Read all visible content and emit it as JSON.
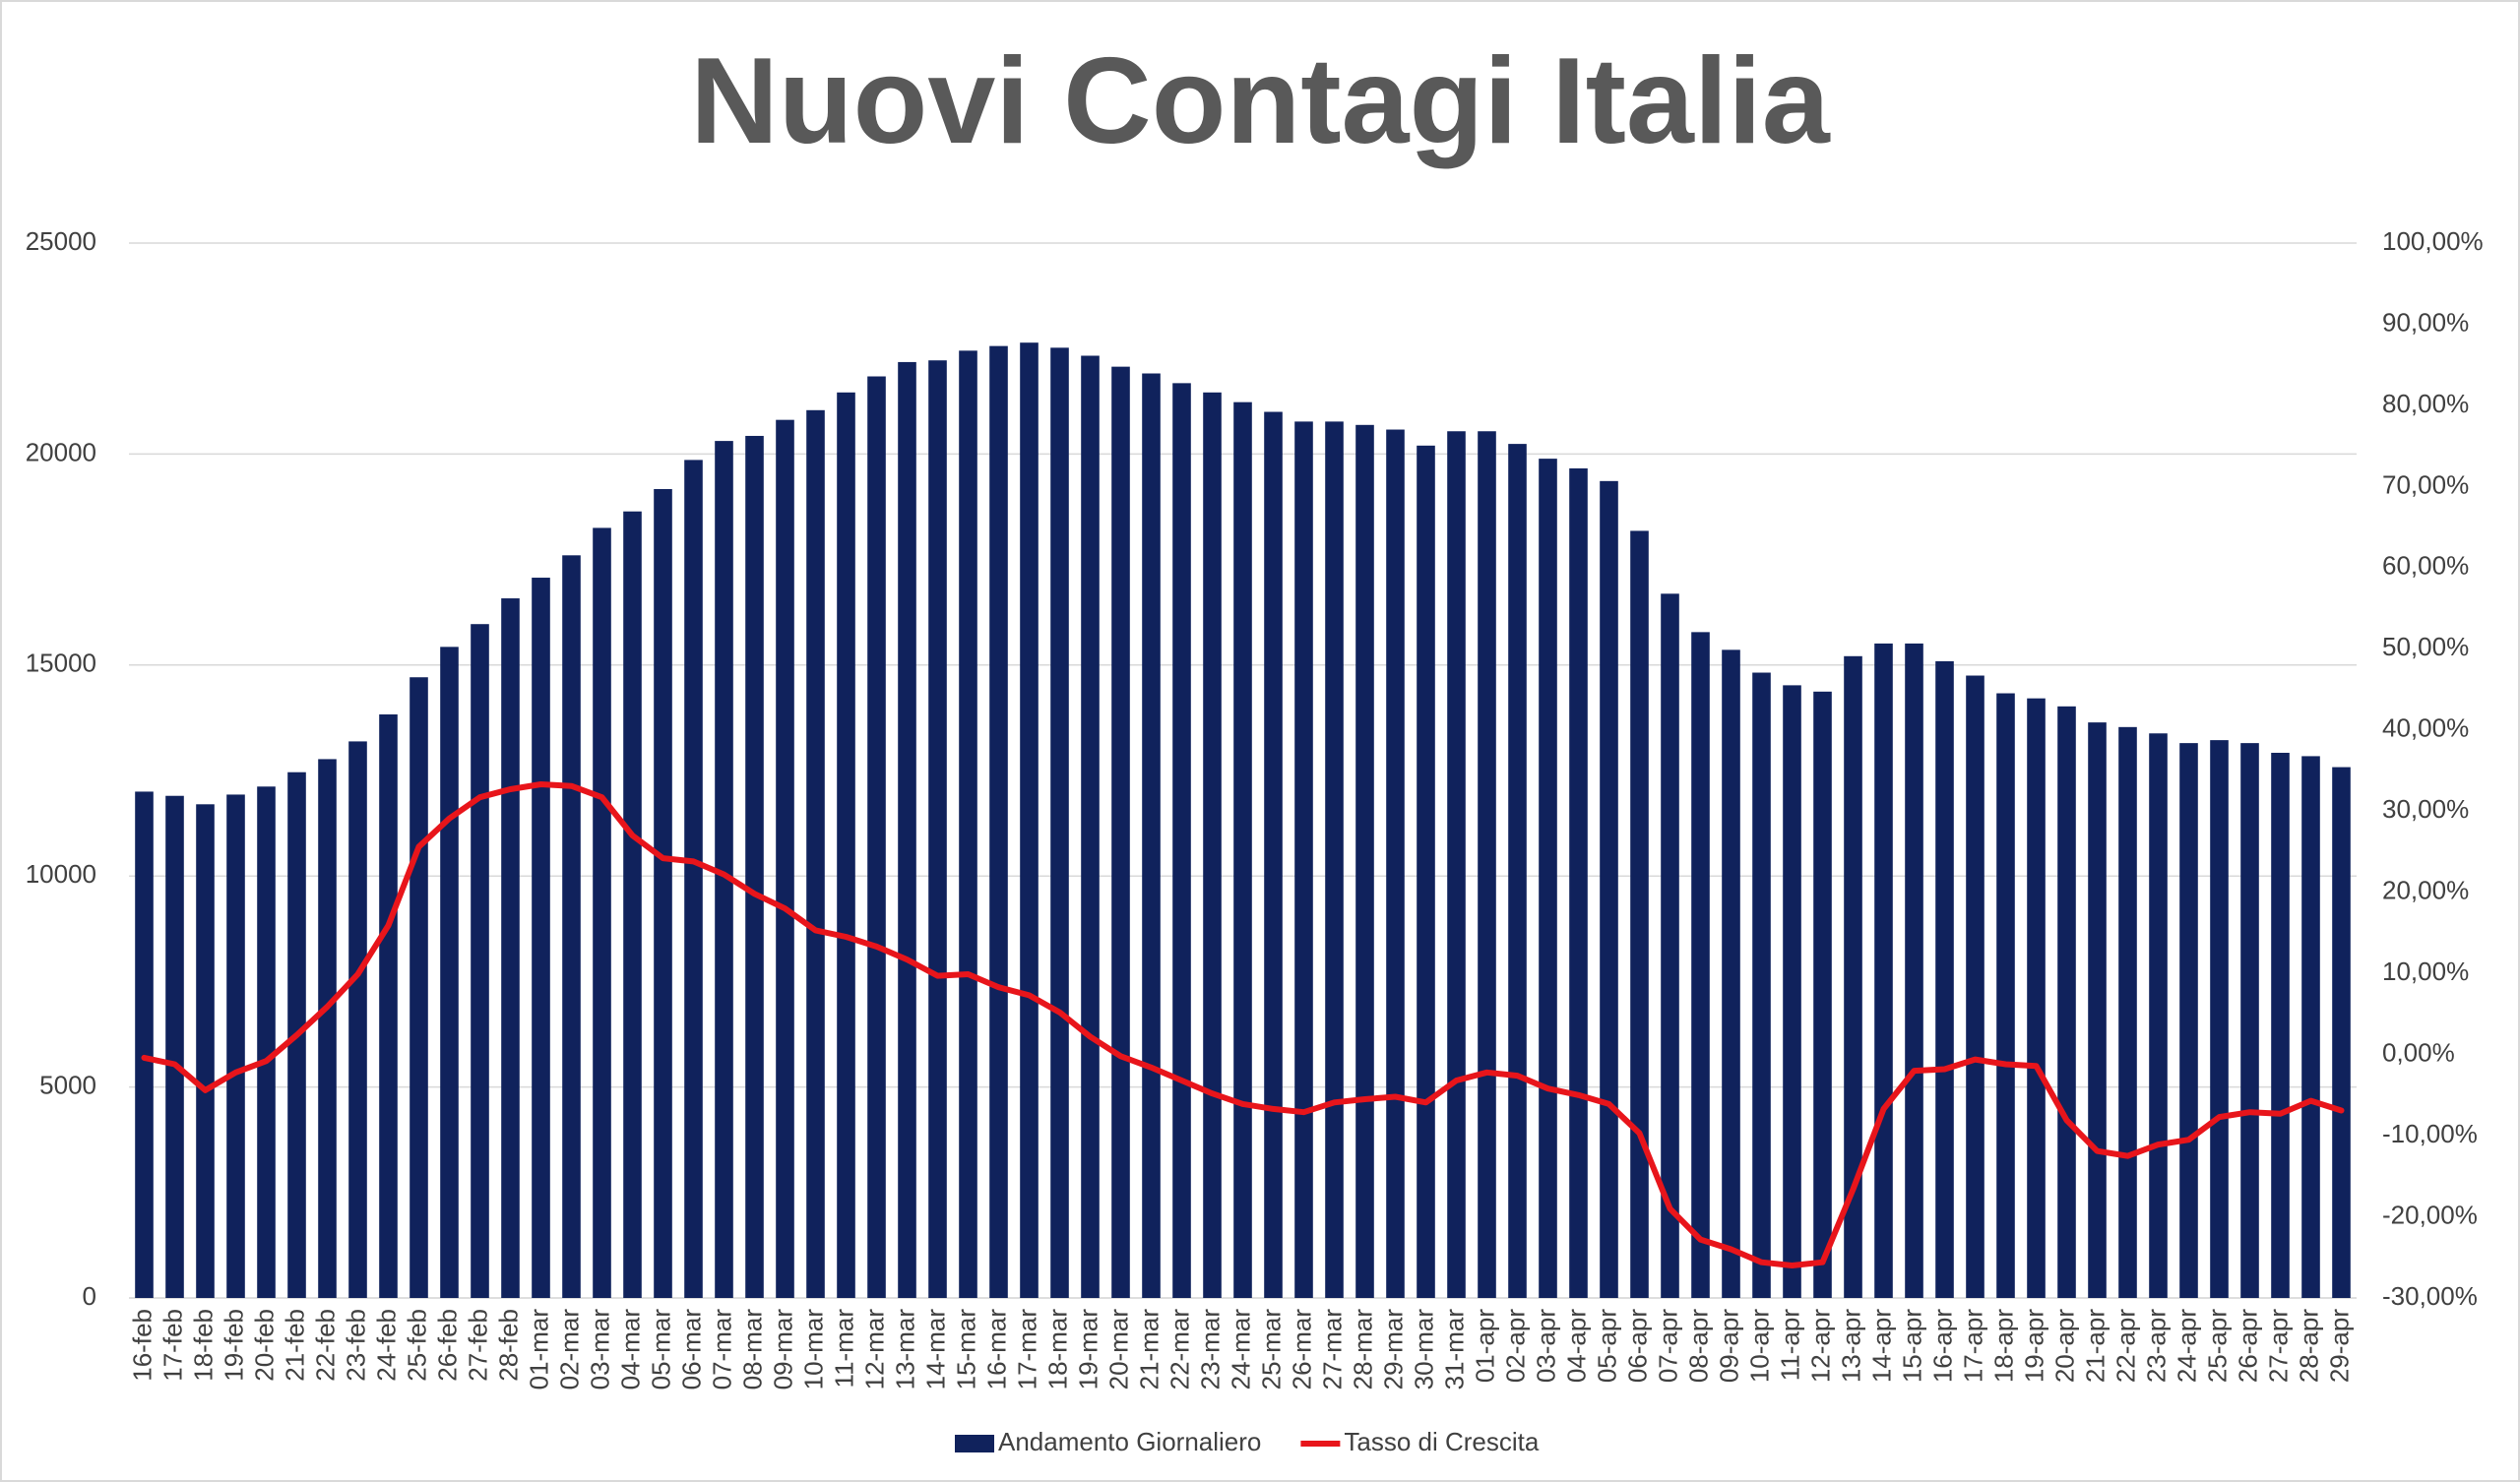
{
  "chart_data": {
    "type": "bar-line",
    "title": "Nuovi Contagi Italia",
    "categories": [
      "16-feb",
      "17-feb",
      "18-feb",
      "19-feb",
      "20-feb",
      "21-feb",
      "22-feb",
      "23-feb",
      "24-feb",
      "25-feb",
      "26-feb",
      "27-feb",
      "28-feb",
      "01-mar",
      "02-mar",
      "03-mar",
      "04-mar",
      "05-mar",
      "06-mar",
      "07-mar",
      "08-mar",
      "09-mar",
      "10-mar",
      "11-mar",
      "12-mar",
      "13-mar",
      "14-mar",
      "15-mar",
      "16-mar",
      "17-mar",
      "18-mar",
      "19-mar",
      "20-mar",
      "21-mar",
      "22-mar",
      "23-mar",
      "24-mar",
      "25-mar",
      "26-mar",
      "27-mar",
      "28-mar",
      "29-mar",
      "30-mar",
      "31-mar",
      "01-apr",
      "02-apr",
      "03-apr",
      "04-apr",
      "05-apr",
      "06-apr",
      "07-apr",
      "08-apr",
      "09-apr",
      "10-apr",
      "11-apr",
      "12-apr",
      "13-apr",
      "14-apr",
      "15-apr",
      "16-apr",
      "17-apr",
      "18-apr",
      "19-apr",
      "20-apr",
      "21-apr",
      "22-apr",
      "23-apr",
      "24-apr",
      "25-apr",
      "26-apr",
      "27-apr",
      "28-apr",
      "29-apr"
    ],
    "series": [
      {
        "name": "Andamento Giornaliero",
        "color": "#10225c",
        "type": "bar",
        "values": [
          12000,
          11900,
          11700,
          11930,
          12120,
          12460,
          12770,
          13190,
          13830,
          14710,
          15430,
          15970,
          16580,
          17070,
          17600,
          18250,
          18640,
          19170,
          19860,
          20310,
          20430,
          20810,
          21040,
          21460,
          21840,
          22180,
          22220,
          22450,
          22560,
          22640,
          22520,
          22330,
          22070,
          21910,
          21680,
          21460,
          21230,
          21000,
          20770,
          20770,
          20690,
          20580,
          20200,
          20540,
          20540,
          20240,
          19890,
          19660,
          19360,
          18180,
          16690,
          15780,
          15360,
          14820,
          14520,
          14370,
          15210,
          15510,
          15510,
          15090,
          14750,
          14330,
          14210,
          14020,
          13640,
          13530,
          13380,
          13150,
          13220,
          13150,
          12920,
          12840,
          12580
        ]
      },
      {
        "name": "Tasso di Crescita",
        "color": "#e8151b",
        "type": "line",
        "axis": "y2",
        "values": [
          -0.4,
          -1.2,
          -4.4,
          -2.2,
          -0.8,
          2.4,
          5.9,
          9.9,
          15.9,
          25.6,
          29.1,
          31.7,
          32.7,
          33.3,
          33.1,
          31.7,
          27.0,
          24.2,
          23.8,
          22.2,
          19.8,
          18.0,
          15.3,
          14.5,
          13.3,
          11.7,
          9.7,
          9.9,
          8.3,
          7.3,
          5.2,
          2.2,
          -0.2,
          -1.6,
          -3.2,
          -4.8,
          -6.1,
          -6.7,
          -7.1,
          -5.9,
          -5.5,
          -5.2,
          -5.9,
          -3.2,
          -2.2,
          -2.6,
          -4.2,
          -5.0,
          -6.1,
          -9.7,
          -19.0,
          -22.8,
          -24.0,
          -25.6,
          -26.0,
          -25.6,
          -16.6,
          -6.7,
          -2.0,
          -1.8,
          -0.6,
          -1.2,
          -1.4,
          -8.1,
          -11.9,
          -12.5,
          -11.1,
          -10.5,
          -7.7,
          -7.1,
          -7.3,
          -5.7,
          -6.9
        ]
      }
    ],
    "ylim": [
      0,
      25000
    ],
    "yticks": [
      0,
      5000,
      10000,
      15000,
      20000,
      25000
    ],
    "y2lim": [
      -30,
      100
    ],
    "y2ticks": [
      {
        "value": -30,
        "label": "-30,00%"
      },
      {
        "value": -20,
        "label": "-20,00%"
      },
      {
        "value": -10,
        "label": "-10,00%"
      },
      {
        "value": 0,
        "label": "0,00%"
      },
      {
        "value": 10,
        "label": "10,00%"
      },
      {
        "value": 20,
        "label": "20,00%"
      },
      {
        "value": 30,
        "label": "30,00%"
      },
      {
        "value": 40,
        "label": "40,00%"
      },
      {
        "value": 50,
        "label": "50,00%"
      },
      {
        "value": 60,
        "label": "60,00%"
      },
      {
        "value": 70,
        "label": "70,00%"
      },
      {
        "value": 80,
        "label": "80,00%"
      },
      {
        "value": 90,
        "label": "90,00%"
      },
      {
        "value": 100,
        "label": "100,00%"
      }
    ],
    "grid": true,
    "legend": "bottom"
  }
}
